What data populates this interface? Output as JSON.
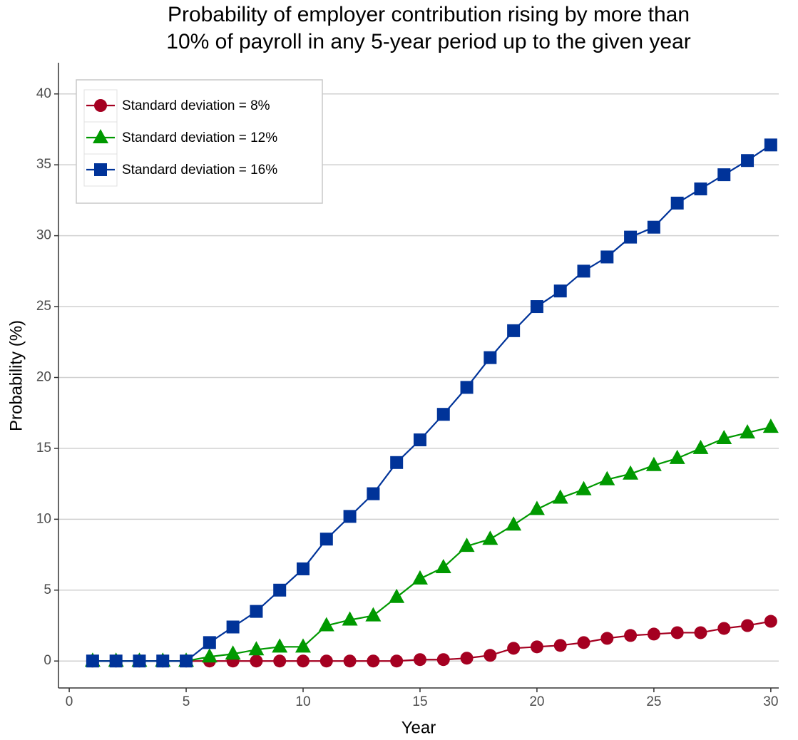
{
  "chart_data": {
    "type": "line",
    "title": [
      "Probability of employer contribution rising by more than",
      "10% of payroll in any 5-year period up to the given year"
    ],
    "x_label": "Year",
    "y_label": "Probability (%)",
    "x": [
      1,
      2,
      3,
      4,
      5,
      6,
      7,
      8,
      9,
      10,
      11,
      12,
      13,
      14,
      15,
      16,
      17,
      18,
      19,
      20,
      21,
      22,
      23,
      24,
      25,
      26,
      27,
      28,
      29,
      30
    ],
    "series": [
      {
        "name": "Standard deviation = 8%",
        "color": "#a50021",
        "marker": "circle",
        "values": [
          0,
          0,
          0,
          0,
          0,
          0,
          0,
          0,
          0,
          0,
          0,
          0,
          0,
          0,
          0.1,
          0.1,
          0.2,
          0.4,
          0.9,
          1.0,
          1.1,
          1.3,
          1.6,
          1.8,
          1.9,
          2.0,
          2.0,
          2.3,
          2.5,
          2.8
        ]
      },
      {
        "name": "Standard deviation = 12%",
        "color": "#009900",
        "marker": "triangle",
        "values": [
          0,
          0,
          0,
          0,
          0,
          0.3,
          0.5,
          0.8,
          1.0,
          1.0,
          2.5,
          2.9,
          3.2,
          4.5,
          5.8,
          6.6,
          8.1,
          8.6,
          9.6,
          10.7,
          11.5,
          12.1,
          12.8,
          13.2,
          13.8,
          14.3,
          15.0,
          15.7,
          16.1,
          16.5
        ]
      },
      {
        "name": "Standard deviation = 16%",
        "color": "#003399",
        "marker": "square",
        "values": [
          0,
          0,
          0,
          0,
          0,
          1.3,
          2.4,
          3.5,
          5.0,
          6.5,
          8.6,
          10.2,
          11.8,
          14.0,
          15.6,
          17.4,
          19.3,
          21.4,
          23.3,
          25.0,
          26.1,
          27.5,
          28.5,
          29.9,
          30.6,
          32.3,
          33.3,
          34.3,
          35.3,
          36.4
        ]
      }
    ],
    "xlim": [
      -0.46,
      30.34
    ],
    "xticks": [
      0,
      5,
      10,
      15,
      20,
      25,
      30
    ],
    "ylim": [
      -1.9,
      42.2
    ],
    "yticks": [
      0,
      5,
      10,
      15,
      20,
      25,
      30,
      35,
      40
    ],
    "grid": true,
    "legend": "top-left"
  }
}
